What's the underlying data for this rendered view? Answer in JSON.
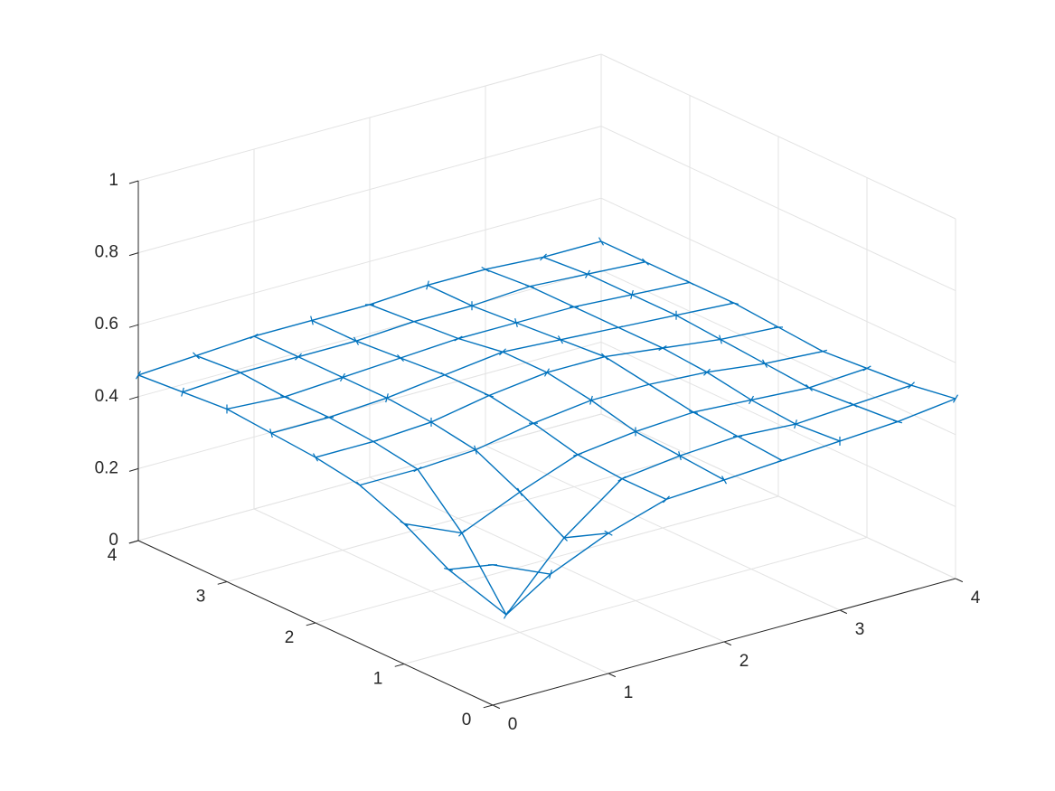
{
  "chart_data": {
    "type": "surface3d",
    "x": [
      0,
      0.5,
      1,
      1.5,
      2,
      2.5,
      3,
      3.5,
      4
    ],
    "y": [
      0,
      0.5,
      1,
      1.5,
      2,
      2.5,
      3,
      3.5,
      4
    ],
    "z": [
      [
        0.39,
        0.32,
        0.39,
        0.44,
        0.45,
        0.46,
        0.47,
        0.48,
        0.5
      ],
      [
        0.32,
        0.15,
        0.32,
        0.44,
        0.46,
        0.47,
        0.46,
        0.47,
        0.48
      ],
      [
        0.39,
        0.32,
        0.39,
        0.45,
        0.47,
        0.48,
        0.47,
        0.46,
        0.47
      ],
      [
        0.44,
        0.44,
        0.45,
        0.48,
        0.5,
        0.5,
        0.49,
        0.47,
        0.46
      ],
      [
        0.46,
        0.46,
        0.47,
        0.5,
        0.52,
        0.52,
        0.5,
        0.48,
        0.47
      ],
      [
        0.47,
        0.47,
        0.48,
        0.5,
        0.52,
        0.51,
        0.5,
        0.49,
        0.48
      ],
      [
        0.48,
        0.47,
        0.48,
        0.49,
        0.5,
        0.5,
        0.5,
        0.49,
        0.48
      ],
      [
        0.47,
        0.48,
        0.48,
        0.48,
        0.49,
        0.49,
        0.5,
        0.49,
        0.48
      ],
      [
        0.46,
        0.47,
        0.48,
        0.48,
        0.48,
        0.49,
        0.49,
        0.48,
        0.48
      ]
    ],
    "color": "#0072bd",
    "xlim": [
      0,
      4
    ],
    "ylim": [
      0,
      4
    ],
    "zlim": [
      0,
      1
    ],
    "xticks": [
      0,
      1,
      2,
      3,
      4
    ],
    "yticks": [
      0,
      1,
      2,
      3,
      4
    ],
    "zticks": [
      0,
      0.2,
      0.4,
      0.6,
      0.8,
      1
    ],
    "grid": true
  }
}
